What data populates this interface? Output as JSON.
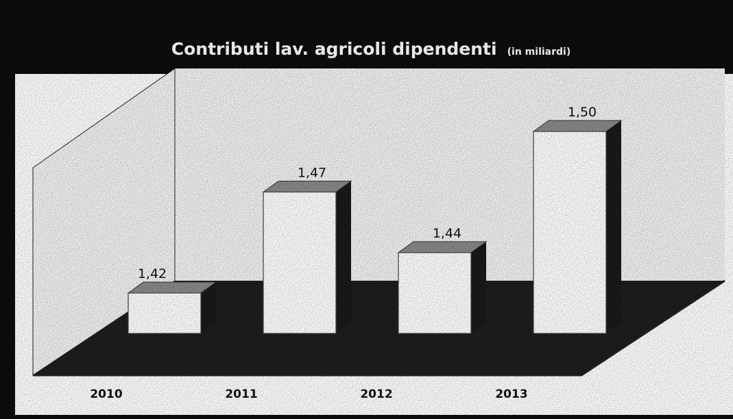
{
  "chart_data": {
    "type": "bar",
    "title": "Contributi lav. agricoli dipendenti",
    "subtitle": "(in miliardi)",
    "categories": [
      "2010",
      "2011",
      "2012",
      "2013"
    ],
    "values": [
      1.42,
      1.47,
      1.44,
      1.5
    ],
    "value_labels": [
      "1,42",
      "1,47",
      "1,44",
      "1,50"
    ],
    "xlabel": "",
    "ylabel": "",
    "grid": false,
    "legend": "none",
    "colors": {
      "bar": "#ffffff",
      "bar_side": "#1a1a1a",
      "bar_top": "#8a8a8a",
      "wall": "#f2f2f2",
      "floor": "#1e1e1e",
      "frame_bg": "#0d0d0d",
      "plot_bg": "#ffffff"
    }
  }
}
